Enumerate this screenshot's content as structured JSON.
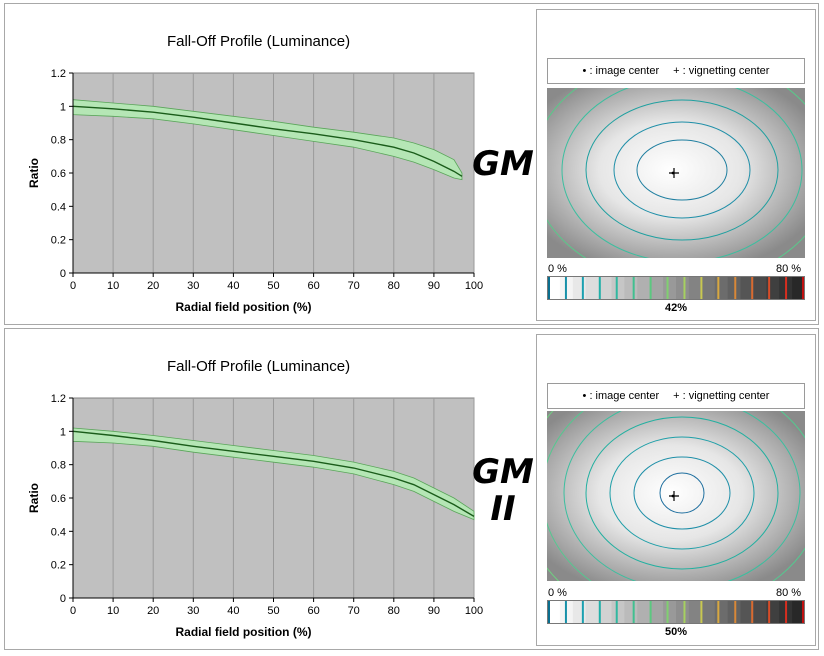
{
  "panels": [
    {
      "lens_label": "GM",
      "vignetting": {
        "legend_image_center": "• : image center",
        "legend_vignetting_center": "+ : vignetting center",
        "scale_min": "0 %",
        "scale_max": "80 %",
        "value": "42%"
      }
    },
    {
      "lens_label": "GM II",
      "vignetting": {
        "legend_image_center": "• : image center",
        "legend_vignetting_center": "+ : vignetting center",
        "scale_min": "0 %",
        "scale_max": "80 %",
        "value": "50%"
      }
    }
  ],
  "chart_data": [
    {
      "type": "area",
      "title": "Fall-Off Profile (Luminance)",
      "xlabel": "Radial field position (%)",
      "ylabel": "Ratio",
      "xlim": [
        0,
        100
      ],
      "ylim": [
        0,
        1.2
      ],
      "xticks": [
        0,
        10,
        20,
        30,
        40,
        50,
        60,
        70,
        80,
        90,
        100
      ],
      "yticks": [
        0,
        0.2,
        0.4,
        0.6,
        0.8,
        1,
        1.2
      ],
      "grid": true,
      "plot_background": "#c0c0c0",
      "band_color": "#b5e6b5",
      "line_color": "#1a5c1a",
      "x": [
        0,
        10,
        20,
        30,
        40,
        50,
        60,
        70,
        80,
        85,
        90,
        95,
        97
      ],
      "mean": [
        1.0,
        0.985,
        0.965,
        0.935,
        0.9,
        0.865,
        0.835,
        0.8,
        0.755,
        0.72,
        0.67,
        0.61,
        0.58
      ],
      "upper": [
        1.04,
        1.02,
        1.0,
        0.97,
        0.94,
        0.91,
        0.875,
        0.845,
        0.81,
        0.78,
        0.74,
        0.68,
        0.6
      ],
      "lower": [
        0.95,
        0.94,
        0.925,
        0.895,
        0.86,
        0.825,
        0.79,
        0.755,
        0.7,
        0.665,
        0.62,
        0.57,
        0.56
      ]
    },
    {
      "type": "area",
      "title": "Fall-Off Profile (Luminance)",
      "xlabel": "Radial field position (%)",
      "ylabel": "Ratio",
      "xlim": [
        0,
        100
      ],
      "ylim": [
        0,
        1.2
      ],
      "xticks": [
        0,
        10,
        20,
        30,
        40,
        50,
        60,
        70,
        80,
        90,
        100
      ],
      "yticks": [
        0,
        0.2,
        0.4,
        0.6,
        0.8,
        1,
        1.2
      ],
      "grid": true,
      "plot_background": "#c0c0c0",
      "band_color": "#b5e6b5",
      "line_color": "#1a5c1a",
      "x": [
        0,
        10,
        20,
        30,
        40,
        50,
        60,
        70,
        80,
        85,
        90,
        95,
        100
      ],
      "mean": [
        1.0,
        0.975,
        0.945,
        0.91,
        0.88,
        0.85,
        0.82,
        0.78,
        0.72,
        0.68,
        0.62,
        0.56,
        0.49
      ],
      "upper": [
        1.02,
        1.0,
        0.975,
        0.945,
        0.915,
        0.885,
        0.855,
        0.815,
        0.76,
        0.72,
        0.66,
        0.6,
        0.52
      ],
      "lower": [
        0.94,
        0.93,
        0.91,
        0.875,
        0.845,
        0.815,
        0.785,
        0.745,
        0.68,
        0.64,
        0.58,
        0.52,
        0.47
      ]
    }
  ]
}
